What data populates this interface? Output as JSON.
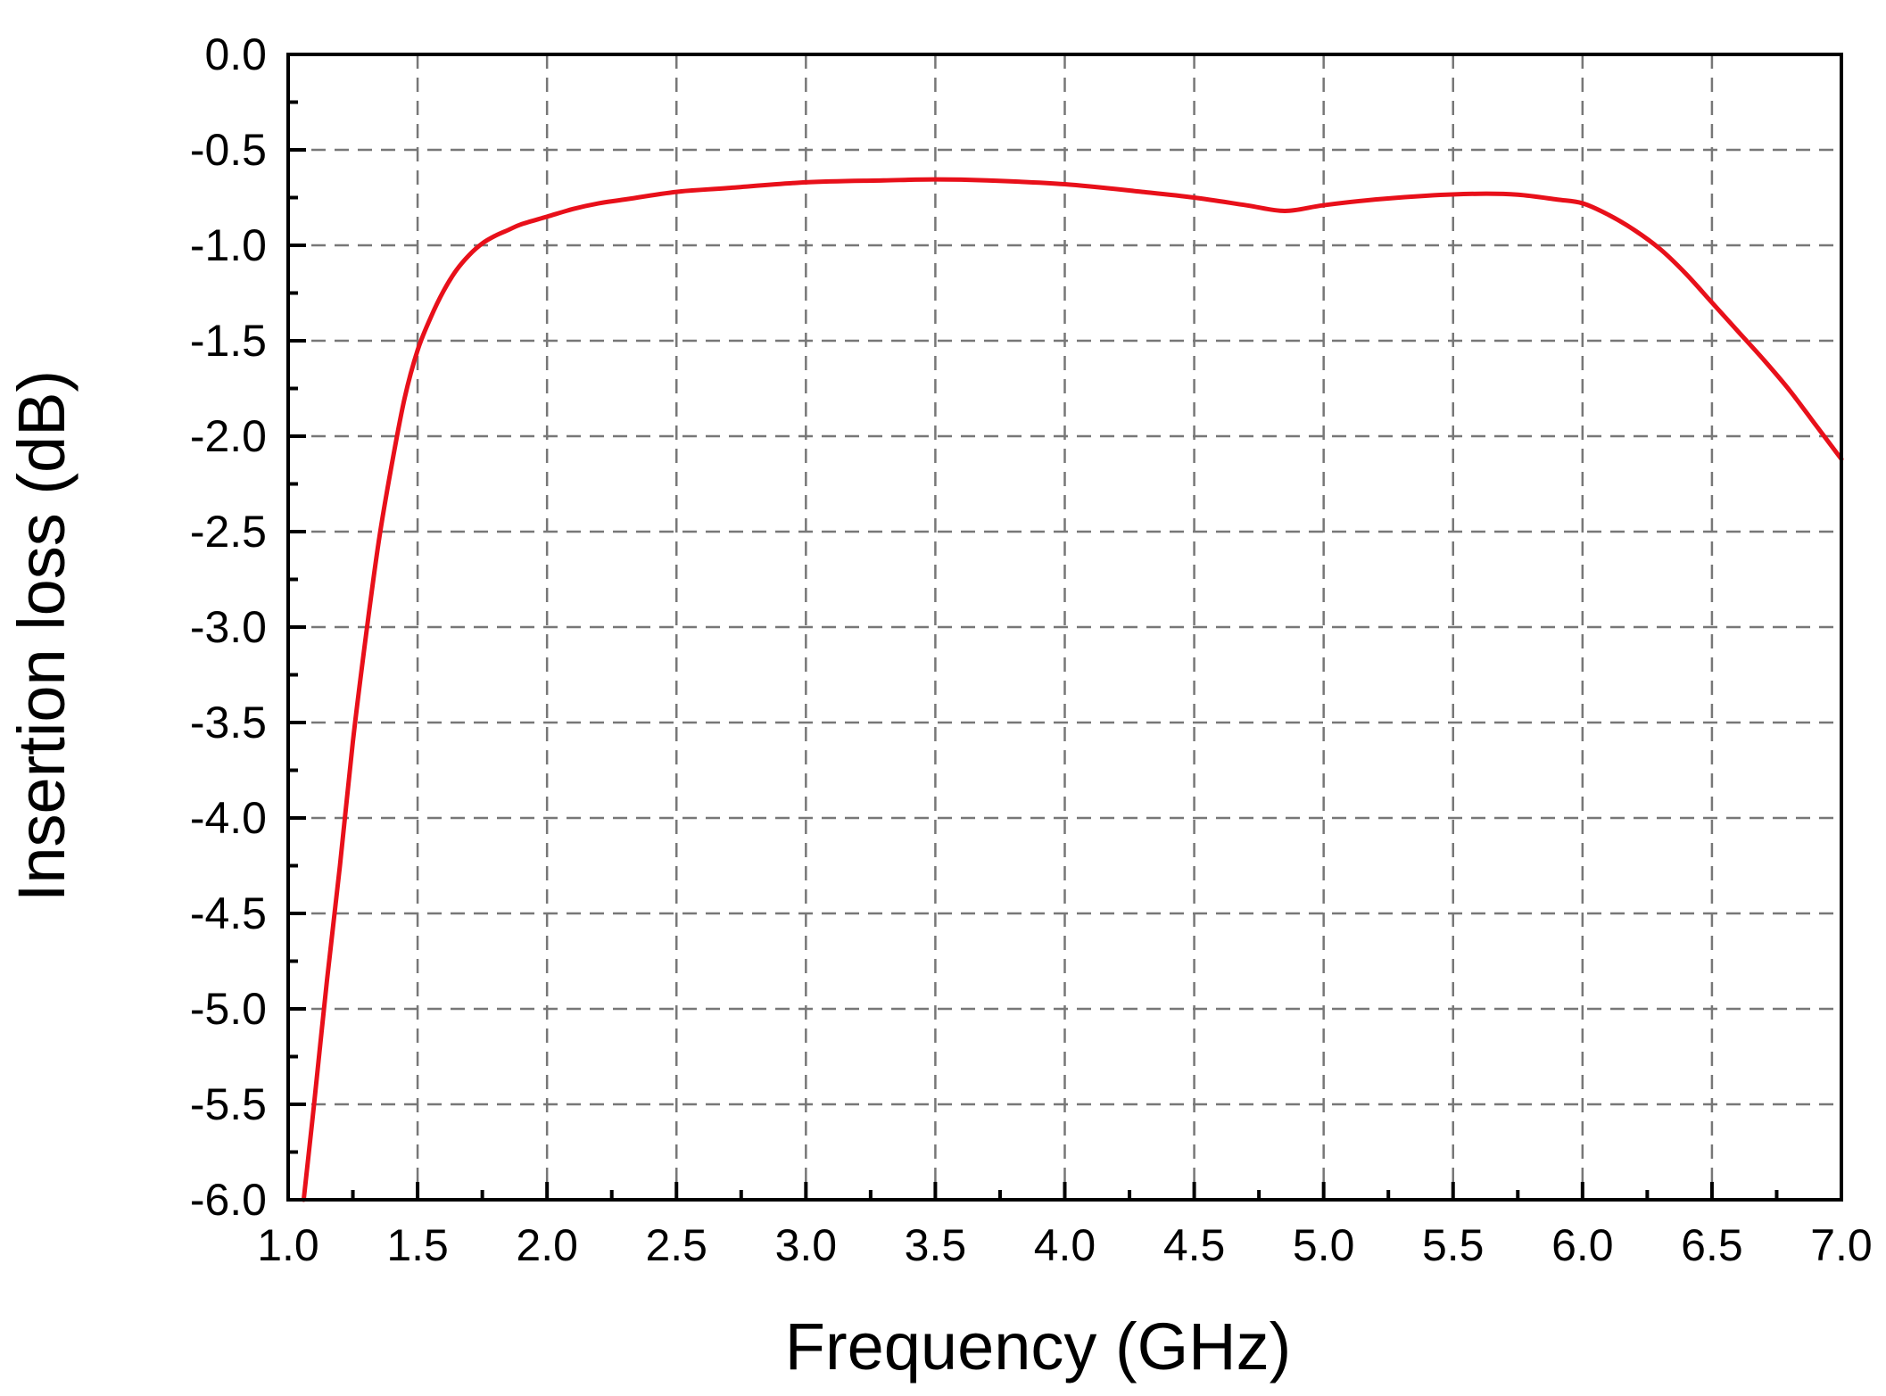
{
  "chart_data": {
    "type": "line",
    "title": "",
    "xlabel": "Frequency (GHz)",
    "ylabel": "Insertion loss (dB)",
    "xlim": [
      1.0,
      7.0
    ],
    "ylim": [
      -6.0,
      0.0
    ],
    "xticks": [
      "1.0",
      "1.5",
      "2.0",
      "2.5",
      "3.0",
      "3.5",
      "4.0",
      "4.5",
      "5.0",
      "5.5",
      "6.0",
      "6.5",
      "7.0"
    ],
    "yticks": [
      "0.0",
      "-0.5",
      "-1.0",
      "-1.5",
      "-2.0",
      "-2.5",
      "-3.0",
      "-3.5",
      "-4.0",
      "-4.5",
      "-5.0",
      "-5.5",
      "-6.0"
    ],
    "grid": true,
    "legend": "none",
    "series": [
      {
        "color": "#e8101a",
        "x": [
          1.06,
          1.1,
          1.15,
          1.2,
          1.25,
          1.3,
          1.35,
          1.4,
          1.45,
          1.5,
          1.55,
          1.6,
          1.65,
          1.7,
          1.75,
          1.8,
          1.85,
          1.9,
          2.0,
          2.1,
          2.2,
          2.3,
          2.5,
          2.7,
          3.0,
          3.3,
          3.5,
          3.7,
          4.0,
          4.3,
          4.5,
          4.7,
          4.85,
          5.0,
          5.2,
          5.4,
          5.6,
          5.75,
          5.9,
          6.0,
          6.1,
          6.2,
          6.3,
          6.4,
          6.5,
          6.6,
          6.7,
          6.8,
          6.9,
          7.0
        ],
        "y": [
          -6.0,
          -5.5,
          -4.85,
          -4.25,
          -3.6,
          -3.05,
          -2.55,
          -2.15,
          -1.8,
          -1.55,
          -1.38,
          -1.24,
          -1.13,
          -1.05,
          -0.99,
          -0.95,
          -0.92,
          -0.89,
          -0.85,
          -0.81,
          -0.78,
          -0.76,
          -0.72,
          -0.7,
          -0.67,
          -0.66,
          -0.655,
          -0.66,
          -0.68,
          -0.72,
          -0.75,
          -0.79,
          -0.82,
          -0.79,
          -0.76,
          -0.74,
          -0.73,
          -0.735,
          -0.76,
          -0.78,
          -0.84,
          -0.92,
          -1.02,
          -1.15,
          -1.3,
          -1.45,
          -1.6,
          -1.76,
          -1.94,
          -2.12
        ]
      }
    ]
  }
}
